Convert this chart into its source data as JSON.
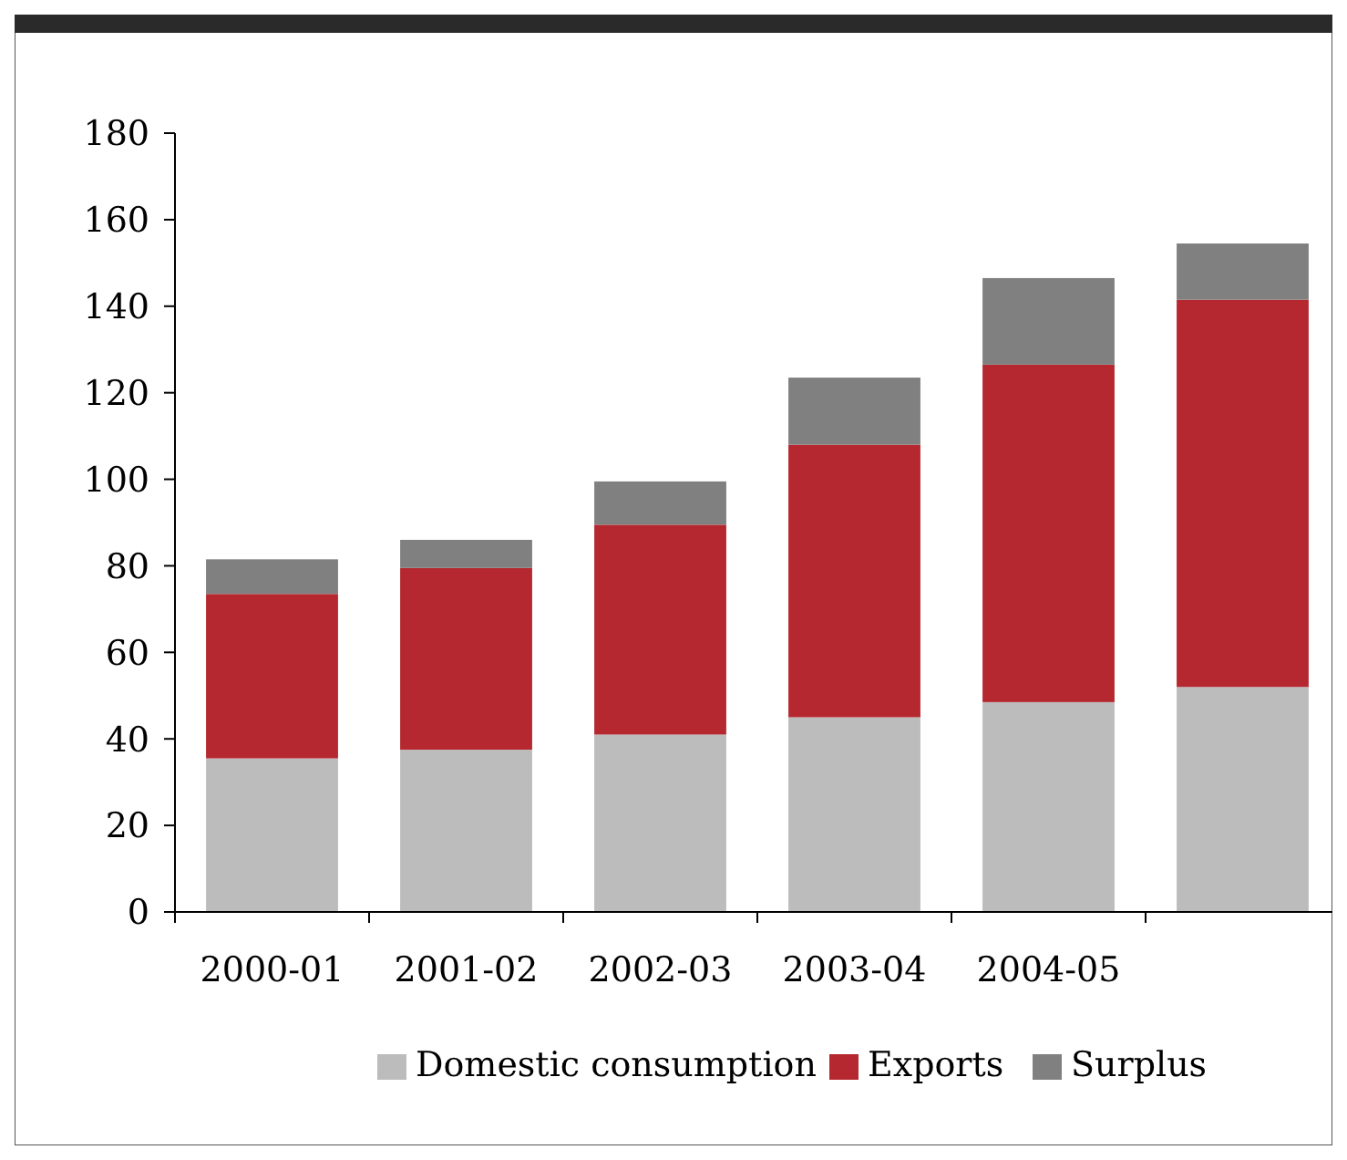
{
  "chart_data": {
    "type": "bar",
    "stacked": true,
    "categories": [
      "2000-01",
      "2001-02",
      "2002-03",
      "2003-04",
      "2004-05",
      null
    ],
    "series": [
      {
        "name": "Domestic consumption",
        "color": "#bcbcbc",
        "values": [
          35.5,
          37.5,
          41,
          45,
          48.5,
          52
        ]
      },
      {
        "name": "Exports",
        "color": "#b5282f",
        "values": [
          38,
          42,
          48.5,
          63,
          78,
          89.5
        ]
      },
      {
        "name": "Surplus",
        "color": "#808080",
        "values": [
          8,
          6.5,
          10,
          15.5,
          20,
          13
        ]
      }
    ],
    "ylim": [
      0,
      180
    ],
    "yticks": [
      0,
      20,
      40,
      60,
      80,
      100,
      120,
      140,
      160,
      180
    ],
    "grid": false,
    "legend": "bottom"
  }
}
